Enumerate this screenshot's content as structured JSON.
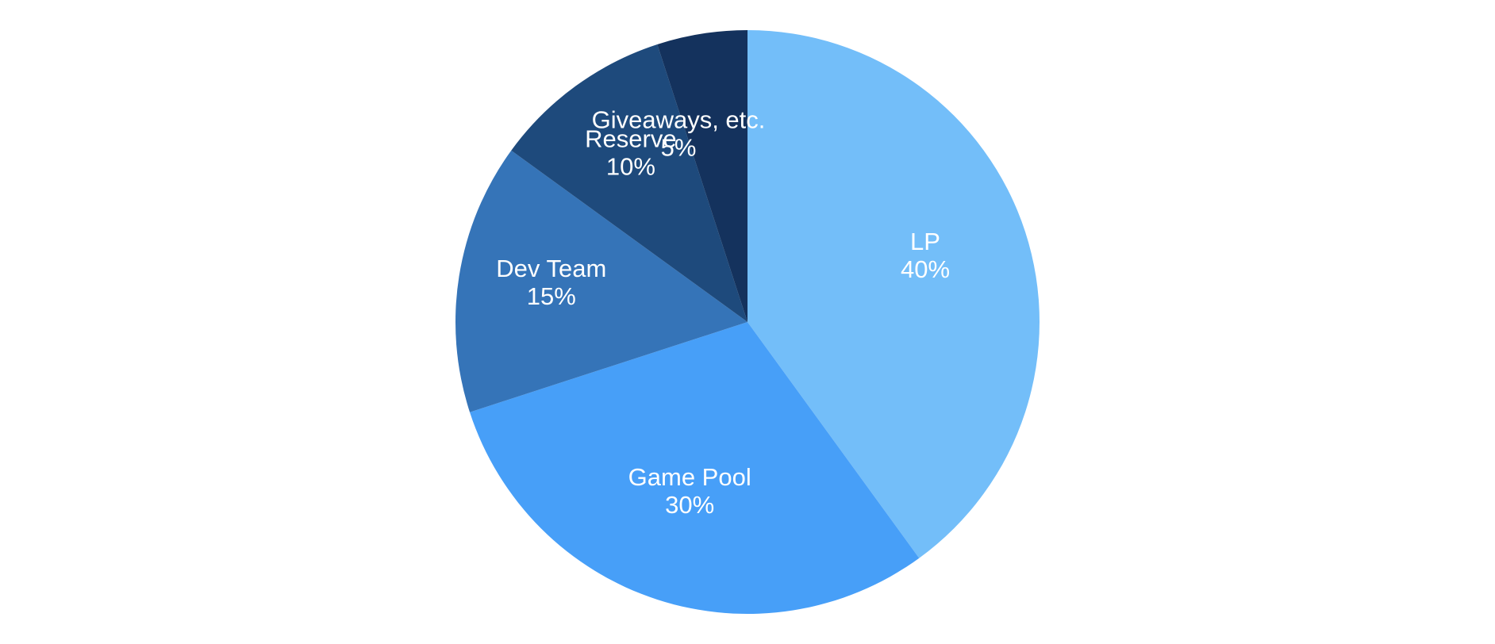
{
  "chart_data": {
    "type": "pie",
    "title": "",
    "start_angle_deg": 0,
    "direction": "clockwise",
    "slices": [
      {
        "label": "LP",
        "value": 40,
        "display": "40%",
        "color": "#73BEF9"
      },
      {
        "label": "Game Pool",
        "value": 30,
        "display": "30%",
        "color": "#479FF8"
      },
      {
        "label": "Dev Team",
        "value": 15,
        "display": "15%",
        "color": "#3574B8"
      },
      {
        "label": "Reserve",
        "value": 10,
        "display": "10%",
        "color": "#1E4A7C"
      },
      {
        "label": "Giveaways, etc.",
        "value": 5,
        "display": "5%",
        "color": "#14325D"
      }
    ]
  }
}
